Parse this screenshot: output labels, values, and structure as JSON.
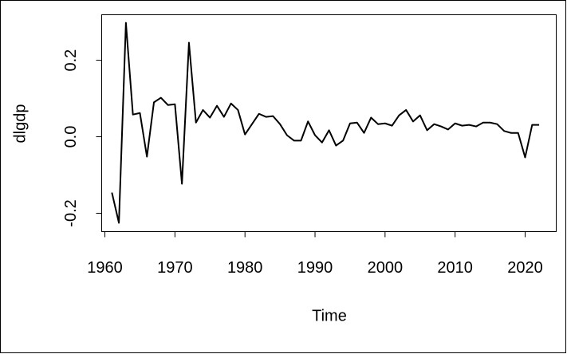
{
  "chart_data": {
    "type": "line",
    "x_label": "Time",
    "y_label": "dlgdp",
    "x": [
      1961,
      1962,
      1963,
      1964,
      1965,
      1966,
      1967,
      1968,
      1969,
      1970,
      1971,
      1972,
      1973,
      1974,
      1975,
      1976,
      1977,
      1978,
      1979,
      1980,
      1981,
      1982,
      1983,
      1984,
      1985,
      1986,
      1987,
      1988,
      1989,
      1990,
      1991,
      1992,
      1993,
      1994,
      1995,
      1996,
      1997,
      1998,
      1999,
      2000,
      2001,
      2002,
      2003,
      2004,
      2005,
      2006,
      2007,
      2008,
      2009,
      2010,
      2011,
      2012,
      2013,
      2014,
      2015,
      2016,
      2017,
      2018,
      2019,
      2020,
      2021,
      2022
    ],
    "values": [
      -0.146,
      -0.225,
      0.298,
      0.058,
      0.062,
      -0.052,
      0.09,
      0.102,
      0.083,
      0.085,
      -0.123,
      0.246,
      0.037,
      0.07,
      0.05,
      0.081,
      0.052,
      0.087,
      0.07,
      0.006,
      0.033,
      0.06,
      0.052,
      0.054,
      0.033,
      0.004,
      -0.01,
      -0.01,
      0.04,
      0.004,
      -0.015,
      0.017,
      -0.023,
      -0.01,
      0.035,
      0.037,
      0.01,
      0.05,
      0.033,
      0.035,
      0.029,
      0.056,
      0.07,
      0.04,
      0.056,
      0.017,
      0.033,
      0.027,
      0.019,
      0.035,
      0.029,
      0.031,
      0.027,
      0.037,
      0.037,
      0.033,
      0.015,
      0.01,
      0.01,
      -0.054,
      0.031,
      0.031
    ],
    "color": "#000000",
    "xlim": [
      1959.54,
      2024.44
    ],
    "ylim": [
      -0.248,
      0.319
    ],
    "xticks": [
      1960,
      1970,
      1980,
      1990,
      2000,
      2010,
      2020
    ],
    "yticks": [
      -0.2,
      {
        "value": 0,
        "label": "0.0"
      },
      0.2
    ]
  }
}
